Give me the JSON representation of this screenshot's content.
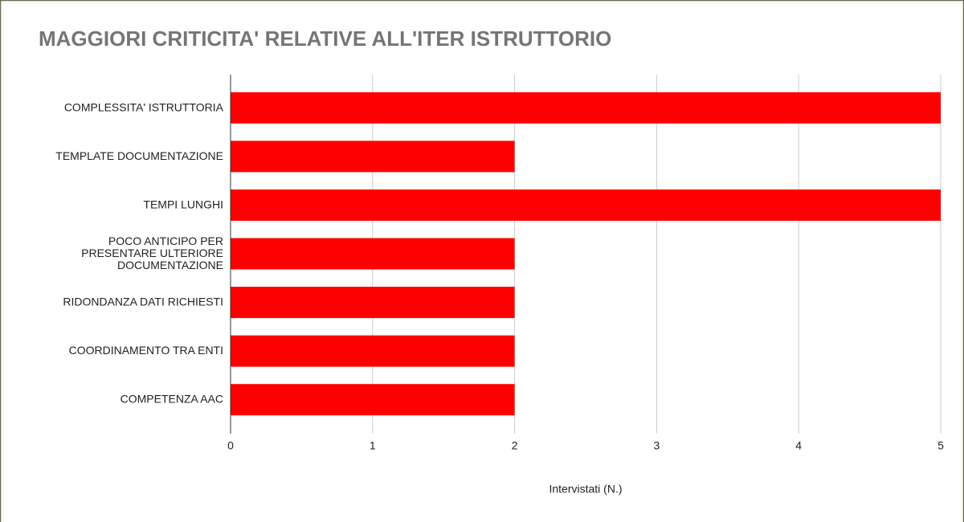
{
  "chart_data": {
    "type": "bar",
    "orientation": "horizontal",
    "title": "MAGGIORI CRITICITA' RELATIVE ALL'ITER ISTRUTTORIO",
    "xlabel": "Intervistati (N.)",
    "categories": [
      "COMPLESSITA' ISTRUTTORIA",
      "TEMPLATE DOCUMENTAZIONE",
      "TEMPI LUNGHI",
      "POCO ANTICIPO PER PRESENTARE ULTERIORE DOCUMENTAZIONE",
      "RIDONDANZA DATI RICHIESTI",
      "COORDINAMENTO TRA ENTI",
      "COMPETENZA AAC"
    ],
    "values": [
      5,
      2,
      5,
      2,
      2,
      2,
      2
    ],
    "color": "#ff0000",
    "xlim": [
      0,
      5
    ],
    "xticks": [
      0,
      1,
      2,
      3,
      4,
      5
    ],
    "grid": true
  }
}
